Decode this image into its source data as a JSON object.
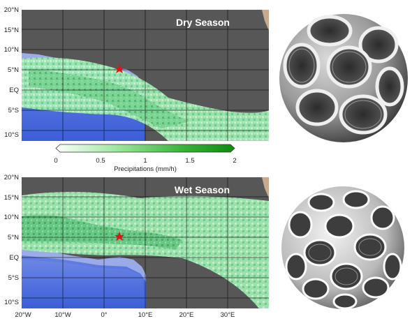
{
  "panels": {
    "top": {
      "season": "Dry Season"
    },
    "bottom": {
      "season": "Wet Season"
    }
  },
  "lat_labels": [
    "20°N",
    "15°N",
    "10°N",
    "5°N",
    "EQ",
    "5°S",
    "10°S"
  ],
  "lon_labels": [
    "20°W",
    "10°W",
    "0°",
    "10°E",
    "20°E",
    "30°E"
  ],
  "colorbar": {
    "ticks": [
      "0",
      "0.5",
      "1",
      "1.5",
      "2"
    ],
    "label": "Precipitations (mm/h)",
    "colors": [
      "#ffffff",
      "#9be69b",
      "#3cb33c",
      "#0e8a0e"
    ]
  },
  "colors": {
    "land": "#575757",
    "ocean_deep": "#3c5ed8",
    "ocean_shelf": "#a9b6ea",
    "precip_light": "#a8ecb4",
    "precip_heavy": "#2f9f4a",
    "site_marker": "#e01515"
  },
  "images": {
    "top": "coccolithophore-sem-1",
    "bottom": "coccolithophore-sem-2"
  }
}
